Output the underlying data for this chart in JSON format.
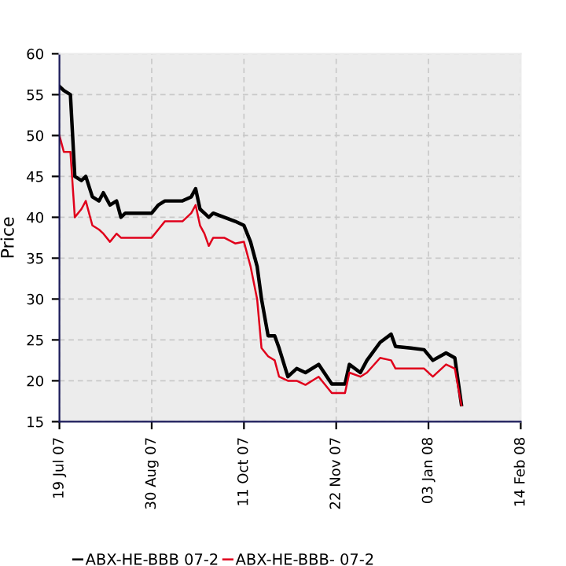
{
  "chart_data": {
    "type": "line",
    "ylabel": "Price",
    "x": [
      "2007-07-19",
      "2007-07-21",
      "2007-07-24",
      "2007-07-26",
      "2007-07-29",
      "2007-07-31",
      "2007-08-03",
      "2007-08-06",
      "2007-08-08",
      "2007-08-11",
      "2007-08-14",
      "2007-08-16",
      "2007-08-18",
      "2007-08-22",
      "2007-08-26",
      "2007-08-30",
      "2007-09-02",
      "2007-09-05",
      "2007-09-09",
      "2007-09-13",
      "2007-09-17",
      "2007-09-19",
      "2007-09-21",
      "2007-09-23",
      "2007-09-25",
      "2007-09-27",
      "2007-10-02",
      "2007-10-07",
      "2007-10-11",
      "2007-10-14",
      "2007-10-17",
      "2007-10-19",
      "2007-10-22",
      "2007-10-25",
      "2007-10-27",
      "2007-10-31",
      "2007-11-04",
      "2007-11-08",
      "2007-11-14",
      "2007-11-20",
      "2007-11-26",
      "2007-11-28",
      "2007-12-03",
      "2007-12-06",
      "2007-12-12",
      "2007-12-17",
      "2007-12-19",
      "2007-12-26",
      "2008-01-01",
      "2008-01-05",
      "2008-01-11",
      "2008-01-15",
      "2008-01-18"
    ],
    "series": [
      {
        "name": "ABX-HE-BBB 07-2",
        "color": "#000000",
        "values": [
          56,
          55.5,
          55,
          45,
          44.5,
          45,
          42.5,
          42,
          43,
          41.5,
          42,
          40,
          40.5,
          40.5,
          40.5,
          40.5,
          41.5,
          42,
          42,
          42,
          42.5,
          43.5,
          41,
          40.5,
          40,
          40.5,
          40,
          39.5,
          39,
          37,
          34,
          30,
          25.5,
          25.5,
          24,
          20.5,
          21.5,
          21,
          22,
          19.6,
          19.6,
          22,
          21,
          22.5,
          24.7,
          25.7,
          24.2,
          24,
          23.8,
          22.5,
          23.4,
          22.8,
          17.1
        ]
      },
      {
        "name": "ABX-HE-BBB- 07-2",
        "color": "#e0001b",
        "values": [
          50,
          48,
          48,
          40,
          41,
          42,
          39,
          38.5,
          38,
          37,
          38,
          37.5,
          37.5,
          37.5,
          37.5,
          37.5,
          38.5,
          39.5,
          39.5,
          39.5,
          40.5,
          41.5,
          39,
          38,
          36.5,
          37.5,
          37.5,
          36.8,
          37,
          34,
          30,
          24,
          23,
          22.5,
          20.5,
          20,
          20,
          19.5,
          20.5,
          18.5,
          18.5,
          21,
          20.5,
          21,
          22.8,
          22.5,
          21.5,
          21.5,
          21.5,
          20.5,
          22,
          21.5,
          17
        ]
      }
    ],
    "xlim": [
      "2007-07-19",
      "2008-02-14"
    ],
    "xticks": [
      {
        "value": "2007-07-19",
        "label": "19 Jul 07"
      },
      {
        "value": "2007-08-30",
        "label": "30 Aug 07"
      },
      {
        "value": "2007-10-11",
        "label": "11 Oct 07"
      },
      {
        "value": "2007-11-22",
        "label": "22 Nov 07"
      },
      {
        "value": "2008-01-03",
        "label": "03 Jan 08"
      },
      {
        "value": "2008-02-14",
        "label": "14 Feb 08"
      }
    ],
    "ylim": [
      15,
      60
    ],
    "yticks": [
      15,
      20,
      25,
      30,
      35,
      40,
      45,
      50,
      55,
      60
    ],
    "grid": true,
    "legend": "bottom",
    "marker": "none",
    "line_style": "solid"
  }
}
